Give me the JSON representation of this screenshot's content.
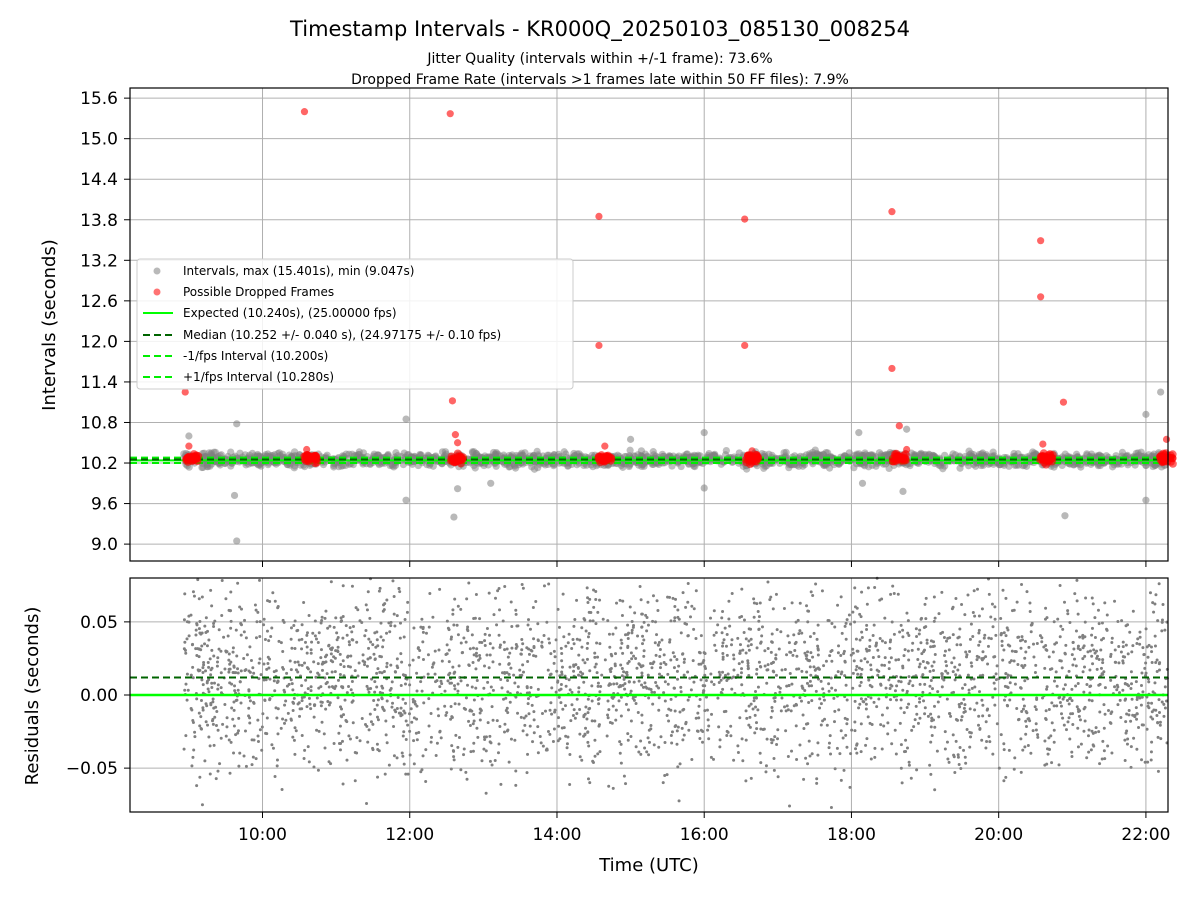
{
  "figure": {
    "title": "Timestamp Intervals - KR000Q_20250103_085130_008254",
    "subtitle_1": "Jitter Quality (intervals within +/-1 frame): 73.6%",
    "subtitle_2": "Dropped Frame Rate (intervals >1 frames late within 50 FF files): 7.9%"
  },
  "colors": {
    "intervals": "#808080",
    "dropped": "#ff0000",
    "expected": "#00ff00",
    "median": "#006400",
    "bounds": "#00ee00",
    "grid": "#b0b0b0"
  },
  "chart_data": [
    {
      "type": "scatter",
      "ylabel": "Intervals (seconds)",
      "xlim_hours": [
        8.2,
        22.3
      ],
      "ylim": [
        8.75,
        15.75
      ],
      "y_ticks": [
        9.0,
        9.6,
        10.2,
        10.8,
        11.4,
        12.0,
        12.6,
        13.2,
        13.8,
        14.4,
        15.0,
        15.6
      ],
      "y_tick_labels": [
        "9.0",
        "9.6",
        "10.2",
        "10.8",
        "11.4",
        "12.0",
        "12.6",
        "13.2",
        "13.8",
        "14.4",
        "15.0",
        "15.6"
      ],
      "grid": true,
      "legend_placement": "center-left",
      "legend": [
        "Intervals, max (15.401s), min (9.047s)",
        "Possible Dropped Frames",
        "Expected (10.240s), (25.00000 fps)",
        "Median (10.252 +/- 0.040 s), (24.97175 +/- 0.10 fps)",
        "-1/fps Interval (10.200s)",
        "+1/fps Interval (10.280s)"
      ],
      "expected": 10.24,
      "median": 10.252,
      "lower_bound": 10.2,
      "upper_bound": 10.28,
      "outlier_points": [
        {
          "x": 9.65,
          "y": 9.047
        },
        {
          "x": 9.62,
          "y": 9.72
        },
        {
          "x": 9.65,
          "y": 10.78
        },
        {
          "x": 11.95,
          "y": 10.85
        },
        {
          "x": 11.95,
          "y": 9.65
        },
        {
          "x": 12.6,
          "y": 9.4
        },
        {
          "x": 12.65,
          "y": 9.82
        },
        {
          "x": 13.1,
          "y": 9.9
        },
        {
          "x": 16.0,
          "y": 9.83
        },
        {
          "x": 18.15,
          "y": 9.9
        },
        {
          "x": 18.7,
          "y": 9.78
        },
        {
          "x": 18.75,
          "y": 10.7
        },
        {
          "x": 20.9,
          "y": 9.42
        },
        {
          "x": 22.0,
          "y": 9.65
        },
        {
          "x": 22.0,
          "y": 10.92
        },
        {
          "x": 22.2,
          "y": 11.25
        },
        {
          "x": 16.0,
          "y": 10.65
        },
        {
          "x": 15.0,
          "y": 10.55
        },
        {
          "x": 18.1,
          "y": 10.65
        },
        {
          "x": 9.0,
          "y": 10.6
        }
      ],
      "dropped_points": [
        {
          "x": 8.95,
          "y": 11.25
        },
        {
          "x": 10.57,
          "y": 15.4
        },
        {
          "x": 12.55,
          "y": 15.37
        },
        {
          "x": 12.58,
          "y": 11.12
        },
        {
          "x": 12.62,
          "y": 10.62
        },
        {
          "x": 12.65,
          "y": 10.5
        },
        {
          "x": 14.57,
          "y": 13.85
        },
        {
          "x": 14.57,
          "y": 11.94
        },
        {
          "x": 16.55,
          "y": 13.81
        },
        {
          "x": 16.55,
          "y": 11.94
        },
        {
          "x": 18.55,
          "y": 13.92
        },
        {
          "x": 18.55,
          "y": 11.6
        },
        {
          "x": 18.65,
          "y": 10.75
        },
        {
          "x": 20.57,
          "y": 13.49
        },
        {
          "x": 20.57,
          "y": 12.66
        },
        {
          "x": 20.6,
          "y": 10.48
        },
        {
          "x": 20.88,
          "y": 11.1
        },
        {
          "x": 22.28,
          "y": 10.55
        },
        {
          "x": 9.0,
          "y": 10.45
        },
        {
          "x": 10.6,
          "y": 10.4
        },
        {
          "x": 14.65,
          "y": 10.45
        },
        {
          "x": 16.65,
          "y": 10.38
        },
        {
          "x": 18.75,
          "y": 10.4
        }
      ],
      "dropped_clusters_hours": [
        9.05,
        10.65,
        12.65,
        14.65,
        16.65,
        18.65,
        20.65,
        22.28
      ]
    },
    {
      "type": "scatter",
      "ylabel": "Residuals (seconds)",
      "xlabel": "Time (UTC)",
      "xlim_hours": [
        8.2,
        22.3
      ],
      "ylim": [
        -0.08,
        0.08
      ],
      "y_ticks": [
        0.05,
        0.0,
        -0.05
      ],
      "y_tick_labels": [
        "0.05",
        "0.00",
        "−0.05"
      ],
      "x_ticks_hours": [
        10,
        12,
        14,
        16,
        18,
        20,
        22
      ],
      "x_tick_labels": [
        "10:00",
        "12:00",
        "14:00",
        "16:00",
        "18:00",
        "20:00",
        "22:00"
      ],
      "grid": true,
      "zero_line": 0.0,
      "median_line": 0.012
    }
  ]
}
